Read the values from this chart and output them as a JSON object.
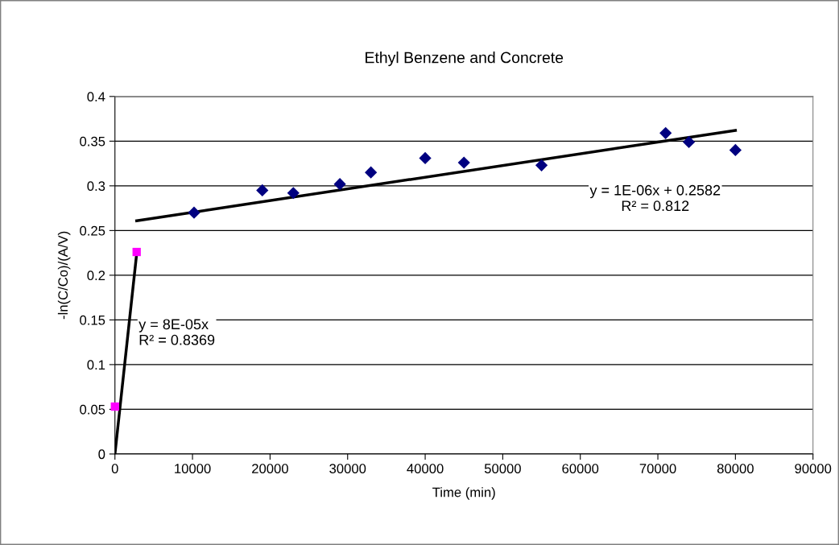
{
  "chart_data": {
    "type": "scatter",
    "title": "Ethyl Benzene and Concrete",
    "xlabel": "Time (min)",
    "ylabel": "-ln(C/Co)/(A/V)",
    "xlim": [
      0,
      90000
    ],
    "xticks": [
      0,
      10000,
      20000,
      30000,
      40000,
      50000,
      60000,
      70000,
      80000,
      90000
    ],
    "ylim": [
      0,
      0.4
    ],
    "yticks": [
      0,
      0.05,
      0.1,
      0.15,
      0.2,
      0.25,
      0.3,
      0.35,
      0.4
    ],
    "grid": "y",
    "series": [
      {
        "marker": "diamond",
        "color": "#000080",
        "x": [
          10200,
          19000,
          23000,
          29000,
          33000,
          40000,
          45000,
          55000,
          71000,
          74000,
          80000
        ],
        "values": [
          0.27,
          0.295,
          0.292,
          0.302,
          0.315,
          0.331,
          0.326,
          0.323,
          0.359,
          0.349,
          0.34
        ]
      },
      {
        "marker": "square",
        "color": "#ff00ff",
        "x": [
          0,
          2800
        ],
        "values": [
          0.053,
          0.226
        ]
      },
      {
        "type": "line",
        "marker": "none",
        "color": "#000000",
        "x": [
          0,
          2800
        ],
        "values": [
          0,
          0.224
        ]
      },
      {
        "type": "line",
        "marker": "none",
        "color": "#000000",
        "x": [
          2800,
          80000
        ],
        "values": [
          0.261,
          0.362
        ]
      }
    ],
    "annotations": [
      "y = 8E-05x\nR² = 0.8369",
      "y = 1E-06x + 0.2582\nR² = 0.812"
    ]
  }
}
